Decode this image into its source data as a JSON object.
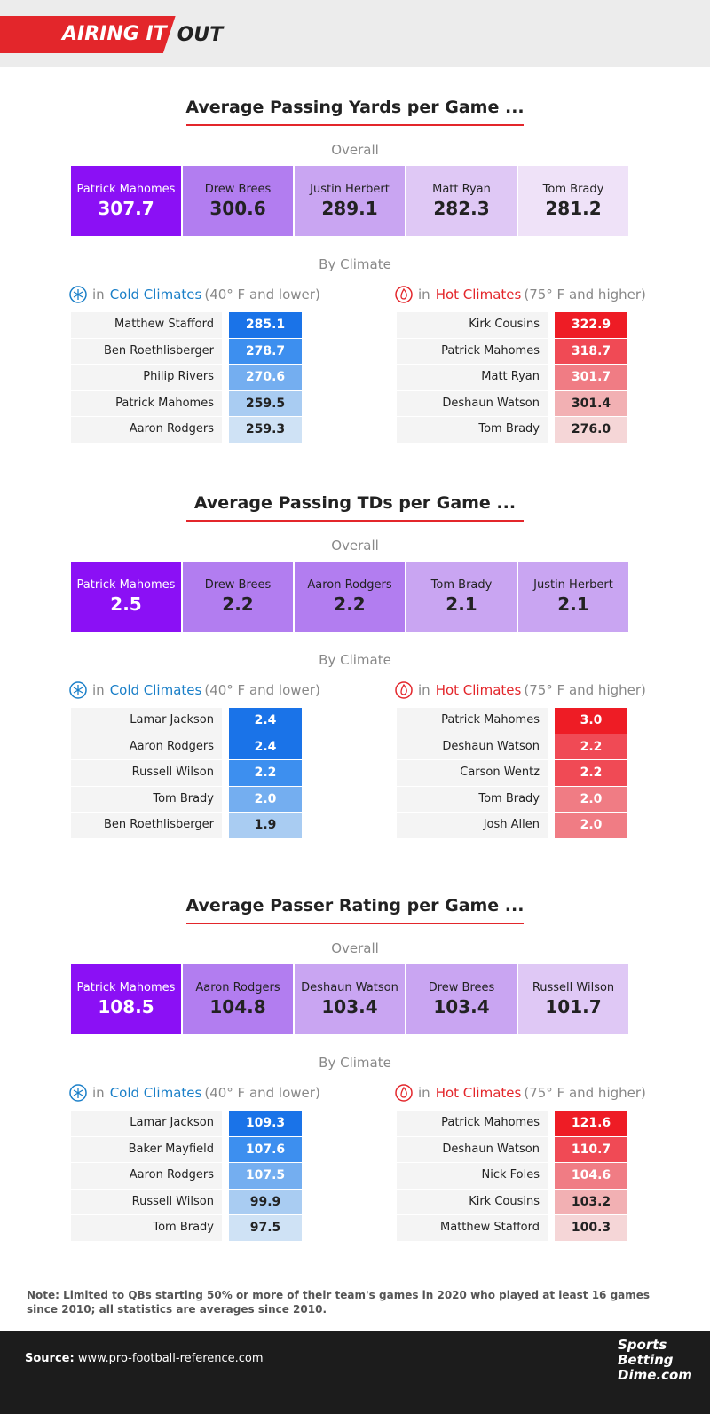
{
  "header": {
    "brand_red": "AIRING IT",
    "brand_black": "OUT"
  },
  "sections": [
    {
      "title": "Average Passing Yards per Game ...",
      "overall_label": "Overall",
      "overall": [
        {
          "name": "Patrick Mahomes",
          "value": "307.7"
        },
        {
          "name": "Drew Brees",
          "value": "300.6"
        },
        {
          "name": "Justin Herbert",
          "value": "289.1"
        },
        {
          "name": "Matt Ryan",
          "value": "282.3"
        },
        {
          "name": "Tom Brady",
          "value": "281.2"
        }
      ],
      "climate_label": "By Climate",
      "cold": {
        "prefix": "in",
        "label": "Cold Climates",
        "range": "(40° F and lower)",
        "rows": [
          {
            "name": "Matthew Stafford",
            "value": "285.1"
          },
          {
            "name": "Ben Roethlisberger",
            "value": "278.7"
          },
          {
            "name": "Philip Rivers",
            "value": "270.6"
          },
          {
            "name": "Patrick Mahomes",
            "value": "259.5"
          },
          {
            "name": "Aaron Rodgers",
            "value": "259.3"
          }
        ]
      },
      "hot": {
        "prefix": "in",
        "label": "Hot Climates",
        "range": "(75° F and higher)",
        "rows": [
          {
            "name": "Kirk Cousins",
            "value": "322.9"
          },
          {
            "name": "Patrick Mahomes",
            "value": "318.7"
          },
          {
            "name": "Matt Ryan",
            "value": "301.7"
          },
          {
            "name": "Deshaun Watson",
            "value": "301.4"
          },
          {
            "name": "Tom Brady",
            "value": "276.0"
          }
        ]
      }
    },
    {
      "title": "Average Passing TDs per Game ...",
      "overall_label": "Overall",
      "overall": [
        {
          "name": "Patrick Mahomes",
          "value": "2.5"
        },
        {
          "name": "Drew Brees",
          "value": "2.2"
        },
        {
          "name": "Aaron Rodgers",
          "value": "2.2"
        },
        {
          "name": "Tom Brady",
          "value": "2.1"
        },
        {
          "name": "Justin Herbert",
          "value": "2.1"
        }
      ],
      "climate_label": "By Climate",
      "cold": {
        "prefix": "in",
        "label": "Cold Climates",
        "range": "(40° F and lower)",
        "rows": [
          {
            "name": "Lamar Jackson",
            "value": "2.4"
          },
          {
            "name": "Aaron Rodgers",
            "value": "2.4"
          },
          {
            "name": "Russell Wilson",
            "value": "2.2"
          },
          {
            "name": "Tom Brady",
            "value": "2.0"
          },
          {
            "name": "Ben Roethlisberger",
            "value": "1.9"
          }
        ]
      },
      "hot": {
        "prefix": "in",
        "label": "Hot Climates",
        "range": "(75° F and higher)",
        "rows": [
          {
            "name": "Patrick Mahomes",
            "value": "3.0"
          },
          {
            "name": "Deshaun Watson",
            "value": "2.2"
          },
          {
            "name": "Carson Wentz",
            "value": "2.2"
          },
          {
            "name": "Tom Brady",
            "value": "2.0"
          },
          {
            "name": "Josh Allen",
            "value": "2.0"
          }
        ]
      }
    },
    {
      "title": "Average Passer Rating per Game ...",
      "overall_label": "Overall",
      "overall": [
        {
          "name": "Patrick Mahomes",
          "value": "108.5"
        },
        {
          "name": "Aaron Rodgers",
          "value": "104.8"
        },
        {
          "name": "Deshaun Watson",
          "value": "103.4"
        },
        {
          "name": "Drew Brees",
          "value": "103.4"
        },
        {
          "name": "Russell Wilson",
          "value": "101.7"
        }
      ],
      "climate_label": "By Climate",
      "cold": {
        "prefix": "in",
        "label": "Cold Climates",
        "range": "(40° F and lower)",
        "rows": [
          {
            "name": "Lamar Jackson",
            "value": "109.3"
          },
          {
            "name": "Baker Mayfield",
            "value": "107.6"
          },
          {
            "name": "Aaron Rodgers",
            "value": "107.5"
          },
          {
            "name": "Russell Wilson",
            "value": "99.9"
          },
          {
            "name": "Tom Brady",
            "value": "97.5"
          }
        ]
      },
      "hot": {
        "prefix": "in",
        "label": "Hot Climates",
        "range": "(75° F and higher)",
        "rows": [
          {
            "name": "Patrick Mahomes",
            "value": "121.6"
          },
          {
            "name": "Deshaun Watson",
            "value": "110.7"
          },
          {
            "name": "Nick Foles",
            "value": "104.6"
          },
          {
            "name": "Kirk Cousins",
            "value": "103.2"
          },
          {
            "name": "Matthew Stafford",
            "value": "100.3"
          }
        ]
      }
    }
  ],
  "note": "Note: Limited to QBs starting 50% or more of their team's games in 2020 who played at least 16 games since 2010; all statistics are averages since 2010.",
  "footer": {
    "source_label": "Source:",
    "source": "www.pro-football-reference.com",
    "logo": [
      "Sports",
      "Betting",
      "Dime",
      ".com"
    ]
  }
}
